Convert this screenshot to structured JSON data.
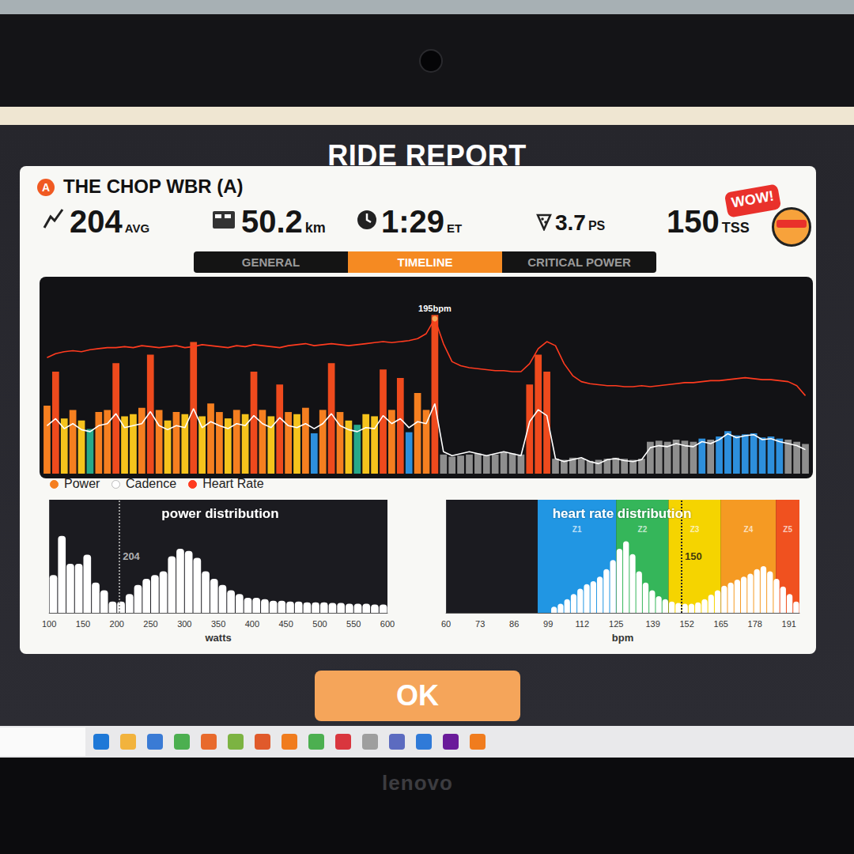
{
  "header": {
    "title": "RIDE REPORT",
    "badge": "A",
    "event": "THE CHOP WBR (A)",
    "stats": [
      {
        "value": "204",
        "unit": "AVG"
      },
      {
        "value": "50.2",
        "unit": "km"
      },
      {
        "value": "1:29",
        "unit": "ET"
      },
      {
        "value": "3.7",
        "unit": "PS"
      },
      {
        "value": "150",
        "unit": "TSS"
      }
    ],
    "sticker": "WOW!",
    "tabs": [
      "GENERAL",
      "TIMELINE",
      "CRITICAL POWER"
    ],
    "active_tab": "TIMELINE",
    "button": "OK",
    "bezel_brand": "lenovo"
  },
  "chart_data": [
    {
      "type": "bar",
      "tick_labels": false,
      "legend": "bottom",
      "x": [
        0,
        1,
        2,
        3,
        4,
        5,
        6,
        7,
        8,
        9,
        10,
        11,
        12,
        13,
        14,
        15,
        16,
        17,
        18,
        19,
        20,
        21,
        22,
        23,
        24,
        25,
        26,
        27,
        28,
        29,
        30,
        31,
        32,
        33,
        34,
        35,
        36,
        37,
        38,
        39,
        40,
        41,
        42,
        43,
        44,
        45,
        46,
        47,
        48,
        49,
        50,
        51,
        52,
        53,
        54,
        55,
        56,
        57,
        58,
        59,
        60,
        61,
        62,
        63,
        64,
        65,
        66,
        67,
        68,
        69,
        70,
        71,
        72,
        73,
        74,
        75,
        76,
        77,
        78,
        79,
        80,
        81,
        82,
        83,
        84,
        85,
        86,
        87,
        88
      ],
      "xlim": [
        -0.5,
        88.5
      ],
      "ylim": [
        0,
        800
      ],
      "y2lim": [
        40,
        210
      ],
      "series": [
        {
          "name": "Power",
          "type": "bar",
          "color": "#f57f20",
          "values": [
            320,
            480,
            260,
            300,
            250,
            210,
            290,
            300,
            520,
            270,
            280,
            310,
            560,
            300,
            250,
            290,
            280,
            620,
            270,
            330,
            290,
            260,
            300,
            280,
            480,
            300,
            270,
            420,
            290,
            280,
            310,
            190,
            300,
            520,
            290,
            250,
            230,
            280,
            270,
            490,
            300,
            450,
            195,
            380,
            300,
            747,
            90,
            80,
            85,
            90,
            95,
            85,
            90,
            100,
            95,
            90,
            420,
            560,
            480,
            70,
            65,
            75,
            70,
            60,
            65,
            70,
            75,
            70,
            65,
            70,
            150,
            155,
            150,
            160,
            155,
            150,
            165,
            160,
            175,
            200,
            180,
            185,
            190,
            170,
            175,
            165,
            160,
            150,
            140
          ],
          "colors": [
            "#f57f20",
            "#ee4a1d",
            "#f5c31c",
            "#f57f20",
            "#f5c31c",
            "#27a98a",
            "#f57f20",
            "#f57f20",
            "#ee4a1d",
            "#f5c31c",
            "#f5c31c",
            "#f57f20",
            "#ee4a1d",
            "#f57f20",
            "#f5c31c",
            "#f57f20",
            "#f5c31c",
            "#ee4a1d",
            "#f5c31c",
            "#f57f20",
            "#f57f20",
            "#f5c31c",
            "#f57f20",
            "#f5c31c",
            "#ee4a1d",
            "#f57f20",
            "#f5c31c",
            "#ee4a1d",
            "#f57f20",
            "#f5c31c",
            "#f57f20",
            "#2d8fdc",
            "#f57f20",
            "#ee4a1d",
            "#f57f20",
            "#f5c31c",
            "#27a98a",
            "#f5c31c",
            "#f5c31c",
            "#ee4a1d",
            "#f57f20",
            "#ee4a1d",
            "#2d8fdc",
            "#f57f20",
            "#f57f20",
            "#ee4a1d",
            "#8e8e8e",
            "#8e8e8e",
            "#8e8e8e",
            "#8e8e8e",
            "#8e8e8e",
            "#8e8e8e",
            "#8e8e8e",
            "#8e8e8e",
            "#8e8e8e",
            "#8e8e8e",
            "#ee4a1d",
            "#ee4a1d",
            "#ee4a1d",
            "#8e8e8e",
            "#8e8e8e",
            "#8e8e8e",
            "#8e8e8e",
            "#8e8e8e",
            "#8e8e8e",
            "#8e8e8e",
            "#8e8e8e",
            "#8e8e8e",
            "#8e8e8e",
            "#8e8e8e",
            "#8e8e8e",
            "#8e8e8e",
            "#8e8e8e",
            "#8e8e8e",
            "#8e8e8e",
            "#8e8e8e",
            "#2d8fdc",
            "#8e8e8e",
            "#2d8fdc",
            "#2d8fdc",
            "#2d8fdc",
            "#2d8fdc",
            "#2d8fdc",
            "#2d8fdc",
            "#2d8fdc",
            "#2d8fdc",
            "#8e8e8e",
            "#8e8e8e",
            "#8e8e8e"
          ]
        },
        {
          "name": "Cadence",
          "type": "line",
          "color": "#ffffff",
          "axis": "y2",
          "values": [
            88,
            95,
            85,
            90,
            84,
            82,
            88,
            90,
            100,
            86,
            88,
            90,
            102,
            88,
            84,
            88,
            86,
            105,
            86,
            92,
            88,
            85,
            90,
            88,
            98,
            90,
            86,
            96,
            88,
            86,
            90,
            85,
            90,
            100,
            88,
            84,
            82,
            86,
            85,
            98,
            90,
            95,
            86,
            92,
            90,
            110,
            62,
            58,
            60,
            62,
            60,
            58,
            60,
            62,
            60,
            58,
            92,
            104,
            98,
            55,
            52,
            54,
            56,
            52,
            50,
            54,
            55,
            53,
            52,
            54,
            66,
            68,
            67,
            70,
            68,
            67,
            72,
            70,
            74,
            80,
            76,
            78,
            79,
            74,
            75,
            72,
            70,
            68,
            64
          ]
        },
        {
          "name": "Heart Rate",
          "type": "line",
          "color": "#ff3b1f",
          "axis": "y2",
          "values": [
            156,
            160,
            162,
            163,
            162,
            164,
            165,
            166,
            166,
            167,
            166,
            168,
            167,
            166,
            167,
            168,
            166,
            167,
            169,
            168,
            167,
            166,
            168,
            167,
            169,
            168,
            167,
            166,
            168,
            169,
            170,
            168,
            169,
            170,
            169,
            168,
            169,
            170,
            171,
            172,
            171,
            172,
            173,
            175,
            180,
            195,
            170,
            152,
            148,
            146,
            145,
            144,
            143,
            143,
            142,
            142,
            150,
            165,
            172,
            168,
            150,
            138,
            132,
            130,
            129,
            128,
            128,
            127,
            127,
            128,
            127,
            128,
            129,
            130,
            131,
            131,
            132,
            133,
            133,
            134,
            135,
            136,
            135,
            134,
            134,
            133,
            132,
            128,
            118
          ]
        }
      ],
      "annotations": [
        {
          "series": "Heart Rate",
          "x": 45,
          "y": 195,
          "text": "195bpm"
        }
      ]
    },
    {
      "type": "histogram",
      "title": "power distribution",
      "color": "#ffffff",
      "tick_labels": "x",
      "bins": [
        100,
        112.5,
        125,
        137.5,
        150,
        162.5,
        175,
        187.5,
        200,
        212.5,
        225,
        237.5,
        250,
        262.5,
        275,
        287.5,
        300,
        312.5,
        325,
        337.5,
        350,
        362.5,
        375,
        387.5,
        400,
        412.5,
        425,
        437.5,
        450,
        462.5,
        475,
        487.5,
        500,
        512.5,
        525,
        537.5,
        550,
        562.5,
        575,
        587.5,
        600
      ],
      "counts": [
        50,
        102,
        65,
        65,
        77,
        40,
        30,
        15,
        15,
        25,
        37,
        45,
        50,
        55,
        75,
        85,
        82,
        73,
        55,
        45,
        37,
        30,
        25,
        20,
        20,
        18,
        16,
        16,
        15,
        15,
        14,
        14,
        14,
        13,
        13,
        12,
        12,
        12,
        11,
        11
      ],
      "xlim": [
        100,
        600
      ],
      "xticks": [
        100,
        150,
        200,
        250,
        300,
        350,
        400,
        450,
        500,
        550,
        600
      ],
      "ylim": [
        0,
        150
      ],
      "x_label": "watts",
      "mean": 204
    },
    {
      "type": "histogram",
      "title": "heart rate distribution",
      "color": "#ffffff",
      "tick_labels": "x",
      "bins": [
        100,
        102.5,
        105,
        107.5,
        110,
        112.5,
        115,
        117.5,
        120,
        122.5,
        125,
        127.5,
        130,
        132.5,
        135,
        137.5,
        140,
        142.5,
        145,
        147.5,
        150,
        152.5,
        155,
        157.5,
        160,
        162.5,
        165,
        167.5,
        170,
        172.5,
        175,
        177.5,
        180,
        182.5,
        185,
        187.5,
        190,
        192.5,
        195
      ],
      "counts": [
        8,
        12,
        18,
        25,
        32,
        38,
        42,
        48,
        58,
        70,
        85,
        95,
        78,
        55,
        40,
        30,
        22,
        18,
        15,
        13,
        12,
        12,
        14,
        18,
        24,
        30,
        36,
        40,
        44,
        48,
        52,
        58,
        62,
        55,
        45,
        35,
        25,
        15
      ],
      "xlim": [
        60,
        195
      ],
      "xticks": [
        60,
        73,
        86,
        99,
        112,
        125,
        139,
        152,
        165,
        178,
        191
      ],
      "ylim": [
        0,
        150
      ],
      "x_label": "bpm",
      "mean": 150,
      "zones": [
        {
          "name": "Z1",
          "from": 95,
          "to": 125,
          "color": "#2196e3"
        },
        {
          "name": "Z2",
          "from": 125,
          "to": 145,
          "color": "#35b65a"
        },
        {
          "name": "Z3",
          "from": 145,
          "to": 165,
          "color": "#f5d400"
        },
        {
          "name": "Z4",
          "from": 165,
          "to": 186,
          "color": "#f59a23"
        },
        {
          "name": "Z5",
          "from": 186,
          "to": 195,
          "color": "#f0511f"
        }
      ]
    }
  ]
}
